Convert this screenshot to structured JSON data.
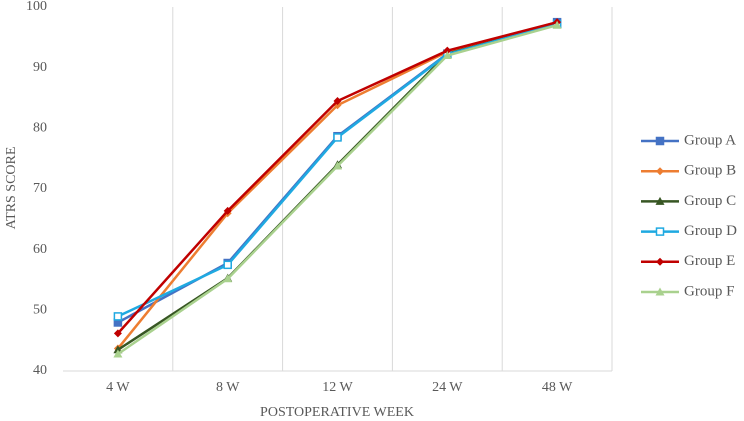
{
  "chart_data": {
    "type": "line",
    "x_label": "POSTOPERATIVE WEEK",
    "y_label": "ATRS SCORE",
    "categories": [
      "4 W",
      "8 W",
      "12 W",
      "24 W",
      "48 W"
    ],
    "ylim": [
      40,
      100
    ],
    "yticks": [
      40,
      50,
      60,
      70,
      80,
      90,
      100
    ],
    "grid": "vertical",
    "legend": "right",
    "series": [
      {
        "name": "Group A",
        "color": "#4472c4",
        "marker": "square",
        "values": [
          48,
          57.8,
          78.7,
          92.3,
          97.5
        ]
      },
      {
        "name": "Group B",
        "color": "#ed7d31",
        "marker": "diamond",
        "values": [
          43.7,
          66,
          83.8,
          92.6,
          97.4
        ]
      },
      {
        "name": "Group C",
        "color": "#375623",
        "marker": "triangle",
        "values": [
          43.5,
          55.3,
          74,
          92.3,
          97.2
        ]
      },
      {
        "name": "Group D",
        "color": "#1fa9e1",
        "marker": "square-open",
        "values": [
          49,
          57.5,
          78.5,
          92.2,
          97.2
        ]
      },
      {
        "name": "Group E",
        "color": "#c00000",
        "marker": "diamond",
        "values": [
          46.2,
          66.4,
          84.5,
          92.8,
          97.5
        ]
      },
      {
        "name": "Group F",
        "color": "#a9d18e",
        "marker": "triangle",
        "values": [
          42.8,
          55.2,
          73.8,
          92,
          97
        ]
      }
    ]
  }
}
